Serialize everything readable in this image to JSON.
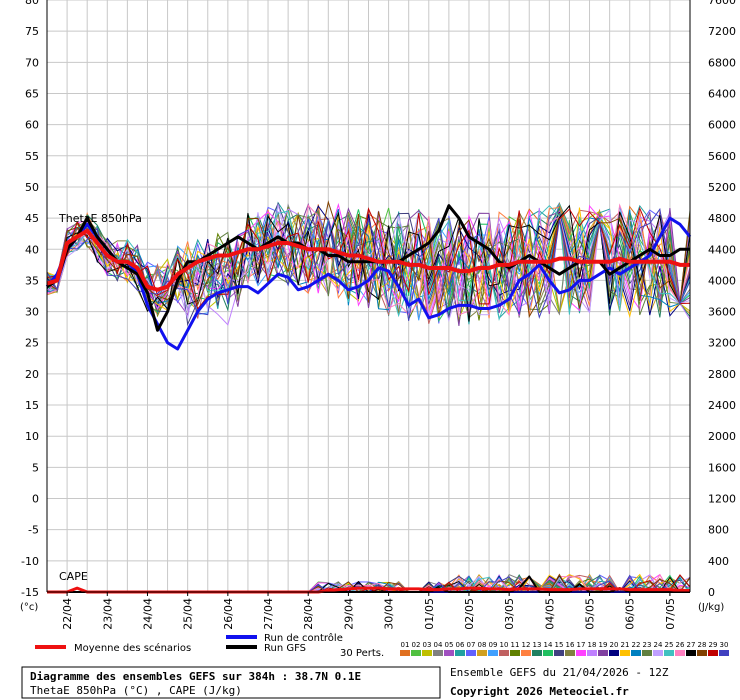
{
  "chart_data": {
    "type": "line",
    "y_left": {
      "min": -15,
      "max": 80,
      "ticks": [
        80,
        75,
        70,
        65,
        60,
        55,
        50,
        45,
        40,
        35,
        30,
        25,
        20,
        15,
        10,
        5,
        0,
        -5,
        -10,
        -15
      ],
      "unit": "(°c)"
    },
    "y_right": {
      "min": 0,
      "max": 7600,
      "ticks": [
        7600,
        7200,
        6800,
        6400,
        6000,
        5600,
        5200,
        4800,
        4400,
        4000,
        3600,
        3200,
        2800,
        2400,
        2000,
        1600,
        1200,
        800,
        400,
        0
      ],
      "unit": "(J/kg)"
    },
    "x_dates": [
      "22/04",
      "23/04",
      "24/04",
      "25/04",
      "26/04",
      "27/04",
      "28/04",
      "29/04",
      "30/04",
      "01/05",
      "02/05",
      "03/05",
      "04/05",
      "05/05",
      "06/05",
      "07/05"
    ],
    "grid": true,
    "panel_labels": {
      "thetae": "ThetaE 850hPa",
      "cape": "CAPE"
    },
    "series": [
      {
        "name": "Moyenne des scénarios",
        "color": "#ee1111",
        "x": [
          0,
          6,
          12,
          18,
          24,
          30,
          36,
          42,
          48,
          54,
          60,
          66,
          72,
          78,
          84,
          90,
          96,
          102,
          108,
          114,
          120,
          126,
          132,
          138,
          144,
          150,
          156,
          162,
          168,
          174,
          180,
          186,
          192,
          198,
          204,
          210,
          216,
          222,
          228,
          234,
          240,
          246,
          252,
          258,
          264,
          270,
          276,
          282,
          288,
          294,
          300,
          306,
          312,
          318,
          324,
          330,
          336,
          342,
          348,
          354,
          360,
          366,
          372,
          378,
          384
        ],
        "theta": [
          34.5,
          35,
          41,
          42,
          43,
          41,
          39,
          38,
          38,
          37,
          34,
          33.5,
          34,
          36,
          37,
          38,
          38.5,
          39,
          39,
          39.5,
          40,
          40,
          40.5,
          41,
          41,
          40.5,
          40,
          40,
          40,
          39.5,
          39,
          39,
          38.5,
          38,
          38,
          38,
          37.5,
          37.5,
          37,
          37,
          37,
          36.5,
          36.5,
          37,
          37,
          37.5,
          37.5,
          38,
          38,
          38,
          38,
          38.5,
          38.5,
          38,
          38,
          38,
          38,
          38.5,
          38,
          38,
          38,
          38,
          38,
          37.5,
          37.5
        ],
        "cape": [
          0,
          0,
          0,
          50,
          0,
          0,
          0,
          0,
          0,
          0,
          0,
          0,
          0,
          0,
          0,
          0,
          0,
          0,
          0,
          0,
          0,
          0,
          0,
          0,
          0,
          0,
          0,
          0,
          20,
          30,
          40,
          50,
          50,
          50,
          40,
          40,
          40,
          40,
          30,
          30,
          40,
          40,
          50,
          50,
          40,
          40,
          30,
          40,
          40,
          40,
          30,
          30,
          30,
          40,
          40,
          40,
          40,
          40,
          30,
          30,
          30,
          30,
          30,
          20,
          20
        ]
      },
      {
        "name": "Run de contrôle",
        "color": "#1111ee",
        "x": [
          0,
          6,
          12,
          18,
          24,
          30,
          36,
          42,
          48,
          54,
          60,
          66,
          72,
          78,
          84,
          90,
          96,
          102,
          108,
          114,
          120,
          126,
          132,
          138,
          144,
          150,
          156,
          162,
          168,
          174,
          180,
          186,
          192,
          198,
          204,
          210,
          216,
          222,
          228,
          234,
          240,
          246,
          252,
          258,
          264,
          270,
          276,
          282,
          288,
          294,
          300,
          306,
          312,
          318,
          324,
          330,
          336,
          342,
          348,
          354,
          360,
          366,
          372,
          378,
          384
        ],
        "theta": [
          34,
          36,
          40,
          42,
          44,
          42,
          40,
          38,
          38,
          36,
          31,
          28,
          25,
          24,
          27,
          30,
          32,
          33,
          33.5,
          34,
          34,
          33,
          34.5,
          36,
          35.5,
          33.5,
          34,
          35,
          36,
          35,
          33.5,
          34,
          35,
          37,
          36.5,
          34,
          31,
          32,
          29,
          29.5,
          30.5,
          31,
          31,
          30.5,
          30.5,
          31,
          32,
          35,
          36,
          37.5,
          35,
          33,
          33.5,
          35,
          35,
          36,
          37,
          36,
          37,
          38,
          39,
          42,
          45,
          44,
          42
        ],
        "cape": [
          0,
          0,
          0,
          0,
          0,
          0,
          0,
          0,
          0,
          0,
          0,
          0,
          0,
          0,
          0,
          0,
          0,
          0,
          0,
          0,
          0,
          0,
          0,
          0,
          0,
          0,
          0,
          0,
          0,
          0,
          0,
          0,
          0,
          0,
          0,
          0,
          0,
          0,
          0,
          0,
          0,
          0,
          0,
          0,
          0,
          0,
          0,
          0,
          0,
          0,
          0,
          0,
          0,
          0,
          0,
          0,
          0,
          0,
          0,
          0,
          0,
          0,
          0,
          0,
          0
        ]
      },
      {
        "name": "Run GFS",
        "color": "#000000",
        "x": [
          0,
          6,
          12,
          18,
          24,
          30,
          36,
          42,
          48,
          54,
          60,
          66,
          72,
          78,
          84,
          90,
          96,
          102,
          108,
          114,
          120,
          126,
          132,
          138,
          144,
          150,
          156,
          162,
          168,
          174,
          180,
          186,
          192,
          198,
          204,
          210,
          216,
          222,
          228,
          234,
          240,
          246,
          252,
          258,
          264,
          270,
          276,
          282,
          288,
          294,
          300,
          306,
          312,
          318,
          324,
          330,
          336,
          342,
          348,
          354,
          360,
          366,
          372,
          378,
          384
        ],
        "theta": [
          34,
          35,
          40,
          42,
          45,
          42,
          40,
          38,
          37,
          36,
          33,
          27,
          30,
          35,
          38,
          38,
          39,
          40,
          41,
          42,
          41,
          40,
          41,
          42,
          41,
          41,
          40,
          40,
          39,
          39,
          38,
          38,
          38,
          38,
          38,
          38,
          39,
          40,
          41,
          43,
          47,
          45,
          42,
          41,
          40,
          38,
          37,
          38,
          39,
          38,
          37,
          36,
          37,
          38,
          38,
          38,
          36,
          37,
          38,
          39,
          40,
          39,
          39,
          40,
          40
        ],
        "cape": [
          0,
          0,
          0,
          0,
          0,
          0,
          0,
          0,
          0,
          0,
          0,
          0,
          0,
          0,
          0,
          0,
          0,
          0,
          0,
          0,
          0,
          0,
          0,
          0,
          0,
          0,
          0,
          0,
          0,
          0,
          0,
          0,
          0,
          0,
          0,
          0,
          0,
          0,
          0,
          50,
          0,
          0,
          0,
          0,
          0,
          0,
          0,
          50,
          200,
          0,
          0,
          0,
          0,
          100,
          0,
          0,
          0,
          50,
          0,
          0,
          0,
          0,
          0,
          0,
          0
        ]
      }
    ]
  },
  "legend": {
    "mean": "Moyenne des scénarios",
    "control": "Run de contrôle",
    "gfs": "Run GFS",
    "perts_label": "30 Perts.",
    "perts": [
      "01",
      "02",
      "03",
      "04",
      "05",
      "06",
      "07",
      "08",
      "09",
      "10",
      "11",
      "12",
      "13",
      "14",
      "15",
      "16",
      "17",
      "18",
      "19",
      "20",
      "21",
      "22",
      "23",
      "24",
      "25",
      "26",
      "27",
      "28",
      "29",
      "30"
    ],
    "pert_colors": [
      "#e07020",
      "#50c040",
      "#c0c000",
      "#808080",
      "#a050c0",
      "#20a0a0",
      "#6060ff",
      "#d0a020",
      "#40a0ff",
      "#c06060",
      "#608000",
      "#ff8040",
      "#208060",
      "#20c060",
      "#404080",
      "#808040",
      "#ff40ff",
      "#c080ff",
      "#8040a0",
      "#000080",
      "#ffc000",
      "#0080c0",
      "#608040",
      "#c0a0ff",
      "#40c0c0",
      "#ff80c0",
      "#000000",
      "#804000",
      "#c00000",
      "#4040c0"
    ]
  },
  "info": {
    "title": "Diagramme des ensembles GEFS sur 384h : 38.7N 0.1E",
    "subtitle": "ThetaE 850hPa (°C) , CAPE (J/kg)",
    "ensemble": "Ensemble GEFS du 21/04/2026 - 12Z",
    "copyright": "Copyright 2026 Meteociel.fr"
  }
}
